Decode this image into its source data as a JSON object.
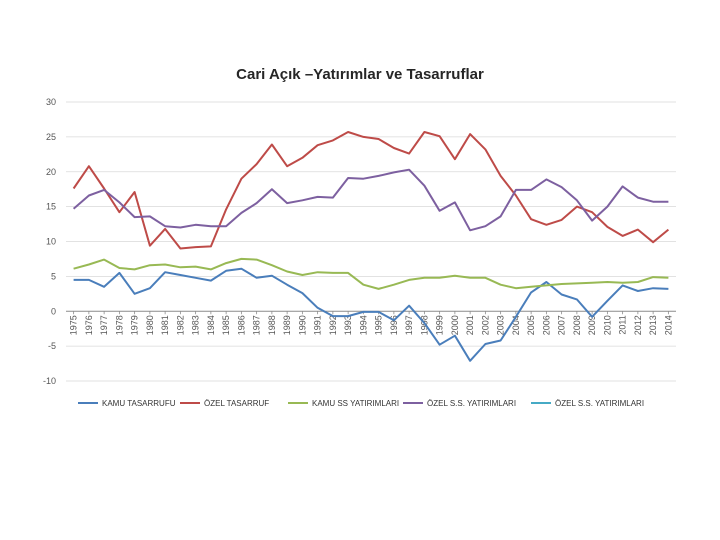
{
  "chart_data": {
    "type": "line",
    "title": "Cari Açık –Yatırımlar ve Tasarruflar",
    "xlabel": "",
    "ylabel": "",
    "ylim": [
      -10,
      30
    ],
    "yticks": [
      30,
      25,
      20,
      15,
      10,
      5,
      0,
      -5,
      -10
    ],
    "grid": true,
    "legend_position": "bottom",
    "x": [
      "1975",
      "1976",
      "1977",
      "1978",
      "1979",
      "1980",
      "1981",
      "1982",
      "1983",
      "1984",
      "1985",
      "1986",
      "1987",
      "1988",
      "1989",
      "1990",
      "1991",
      "1992",
      "1993",
      "1994",
      "1995",
      "1996",
      "1997",
      "1998",
      "1999",
      "2000",
      "2001",
      "2002",
      "2003",
      "2004",
      "2005",
      "2006",
      "2007",
      "2008",
      "2009",
      "2010",
      "2011",
      "2012",
      "2013",
      "2014"
    ],
    "series": [
      {
        "name": "KAMU TASARRUFU",
        "color": "#4a7ebb",
        "values": [
          4.5,
          4.5,
          3.5,
          5.5,
          2.5,
          3.3,
          5.6,
          5.2,
          4.8,
          4.4,
          5.8,
          6.1,
          4.8,
          5.1,
          3.8,
          2.6,
          0.5,
          -0.7,
          -0.7,
          -0.1,
          -0.1,
          -1.3,
          0.8,
          -1.7,
          -4.8,
          -3.5,
          -7.1,
          -4.7,
          -4.2,
          -0.8,
          2.7,
          4.2,
          2.4,
          1.7,
          -0.8,
          1.5,
          3.7,
          2.9,
          3.3,
          3.2
        ]
      },
      {
        "name": "ÖZEL TASARRUF",
        "color": "#be4b48",
        "values": [
          17.6,
          20.8,
          17.6,
          14.2,
          17.1,
          9.4,
          11.8,
          9.0,
          9.2,
          9.3,
          14.6,
          19.0,
          21.1,
          23.9,
          20.8,
          22.0,
          23.8,
          24.5,
          25.7,
          25.0,
          24.7,
          23.4,
          22.6,
          25.7,
          25.1,
          21.8,
          25.4,
          23.2,
          19.4,
          16.6,
          13.2,
          12.4,
          13.1,
          15.0,
          14.2,
          12.1,
          10.8,
          11.7,
          9.9,
          11.7
        ]
      },
      {
        "name": "KAMU SS YATIRIMLARI",
        "color": "#98b954",
        "values": [
          6.1,
          6.7,
          7.4,
          6.2,
          6.0,
          6.6,
          6.7,
          6.3,
          6.4,
          6.0,
          6.9,
          7.5,
          7.4,
          6.6,
          5.7,
          5.2,
          5.6,
          5.5,
          5.5,
          3.8,
          3.2,
          3.8,
          4.5,
          4.8,
          4.8,
          5.1,
          4.8,
          4.8,
          3.8,
          3.3,
          3.5,
          3.7,
          3.9,
          4.0,
          4.1,
          4.2,
          4.1,
          4.2,
          4.9,
          4.8
        ]
      },
      {
        "name": "ÖZEL S.S. YATIRIMLARI",
        "color": "#7d60a0",
        "values": [
          14.7,
          16.6,
          17.4,
          15.6,
          13.5,
          13.6,
          12.2,
          12.0,
          12.4,
          12.2,
          12.2,
          14.1,
          15.5,
          17.5,
          15.5,
          15.9,
          16.4,
          16.3,
          19.1,
          19.0,
          19.4,
          19.9,
          20.3,
          18.0,
          14.4,
          15.6,
          11.6,
          12.2,
          13.6,
          17.4,
          17.4,
          18.9,
          17.8,
          15.9,
          13.0,
          15.0,
          17.9,
          16.3,
          15.7,
          15.7
        ]
      },
      {
        "name": "ÖZEL S.S. YATIRIMLARI",
        "color": "#46aac5",
        "values": [
          null,
          null,
          null,
          null,
          null,
          null,
          null,
          null,
          null,
          null,
          null,
          null,
          null,
          null,
          null,
          null,
          null,
          null,
          null,
          null,
          null,
          null,
          null,
          null,
          null,
          null,
          null,
          null,
          null,
          null,
          null,
          null,
          null,
          null,
          null,
          null,
          null,
          null,
          null,
          null
        ]
      }
    ]
  }
}
